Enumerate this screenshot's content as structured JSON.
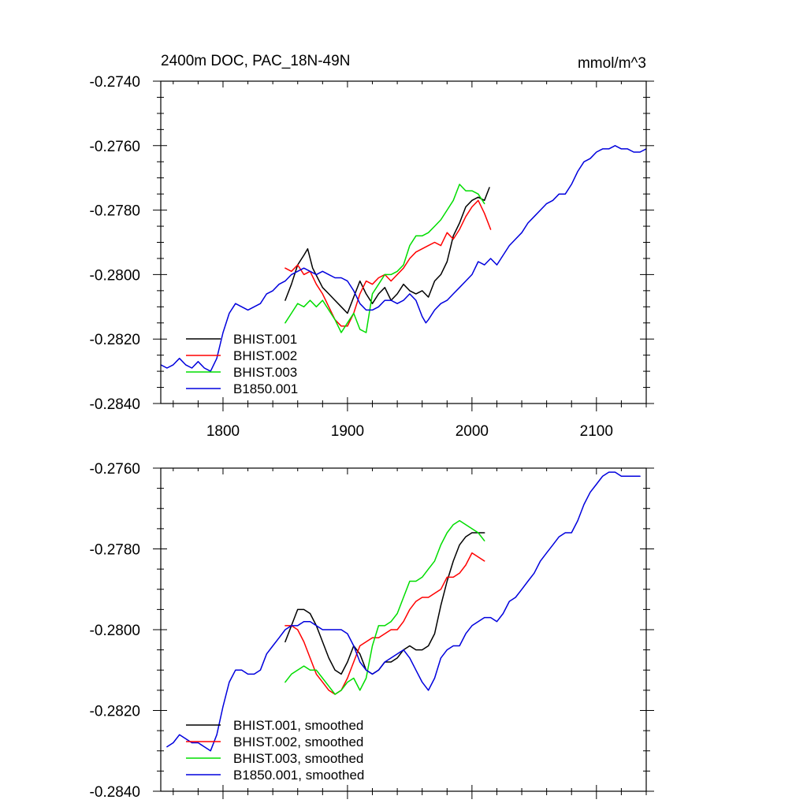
{
  "colors": {
    "BHIST.001": "#000000",
    "BHIST.002": "#ff0000",
    "BHIST.003": "#00dd00",
    "B1850.001": "#0000dd"
  },
  "chart_data": [
    {
      "type": "line",
      "title": "2400m DOC, PAC_18N-49N",
      "units_label": "mmol/m^3",
      "xlim": [
        1750,
        2140
      ],
      "ylim": [
        -0.284,
        -0.274
      ],
      "xticks": [
        1800,
        1900,
        2000,
        2100
      ],
      "xtick_labels": [
        "1800",
        "1900",
        "2000",
        "2100"
      ],
      "yticks": [
        -0.274,
        -0.276,
        -0.278,
        -0.28,
        -0.282,
        -0.284
      ],
      "ytick_labels": [
        "-0.2740",
        "-0.2760",
        "-0.2780",
        "-0.2800",
        "-0.2820",
        "-0.2840"
      ],
      "legend_position": "bottom-left",
      "series": [
        {
          "name": "BHIST.001",
          "color_key": "BHIST.001",
          "x": [
            1850,
            1855,
            1860,
            1865,
            1868,
            1872,
            1876,
            1880,
            1885,
            1890,
            1895,
            1900,
            1905,
            1910,
            1915,
            1920,
            1925,
            1930,
            1935,
            1940,
            1945,
            1950,
            1955,
            1960,
            1965,
            1970,
            1975,
            1980,
            1985,
            1990,
            1995,
            2000,
            2005,
            2010,
            2014
          ],
          "y": [
            -0.2808,
            -0.2803,
            -0.2797,
            -0.2794,
            -0.2792,
            -0.2798,
            -0.2801,
            -0.2804,
            -0.2806,
            -0.2808,
            -0.281,
            -0.2812,
            -0.2807,
            -0.2802,
            -0.2806,
            -0.2809,
            -0.2806,
            -0.2804,
            -0.2808,
            -0.2806,
            -0.2803,
            -0.2805,
            -0.2806,
            -0.2805,
            -0.2807,
            -0.2802,
            -0.28,
            -0.2796,
            -0.2788,
            -0.2784,
            -0.2779,
            -0.2777,
            -0.2776,
            -0.2777,
            -0.2773
          ]
        },
        {
          "name": "BHIST.002",
          "color_key": "BHIST.002",
          "x": [
            1850,
            1855,
            1860,
            1865,
            1870,
            1875,
            1880,
            1885,
            1890,
            1895,
            1900,
            1905,
            1910,
            1915,
            1920,
            1925,
            1930,
            1935,
            1940,
            1945,
            1950,
            1955,
            1960,
            1965,
            1970,
            1975,
            1980,
            1985,
            1990,
            1995,
            2000,
            2005,
            2010,
            2015
          ],
          "y": [
            -0.2798,
            -0.2799,
            -0.2797,
            -0.28,
            -0.2799,
            -0.2803,
            -0.2806,
            -0.281,
            -0.2814,
            -0.2816,
            -0.2816,
            -0.2812,
            -0.2806,
            -0.2802,
            -0.2803,
            -0.2801,
            -0.28,
            -0.2802,
            -0.28,
            -0.2798,
            -0.2795,
            -0.2793,
            -0.2792,
            -0.2791,
            -0.279,
            -0.2791,
            -0.2787,
            -0.2789,
            -0.2786,
            -0.2782,
            -0.2779,
            -0.2777,
            -0.2781,
            -0.2786
          ]
        },
        {
          "name": "BHIST.003",
          "color_key": "BHIST.003",
          "x": [
            1850,
            1855,
            1860,
            1865,
            1870,
            1875,
            1880,
            1885,
            1890,
            1895,
            1900,
            1905,
            1910,
            1915,
            1920,
            1925,
            1930,
            1935,
            1940,
            1945,
            1950,
            1955,
            1960,
            1965,
            1970,
            1975,
            1980,
            1985,
            1990,
            1995,
            2000,
            2005,
            2010
          ],
          "y": [
            -0.2815,
            -0.2812,
            -0.2809,
            -0.281,
            -0.2808,
            -0.281,
            -0.2808,
            -0.2811,
            -0.2814,
            -0.2818,
            -0.2815,
            -0.2812,
            -0.2817,
            -0.2818,
            -0.2806,
            -0.2803,
            -0.28,
            -0.28,
            -0.2799,
            -0.2797,
            -0.2791,
            -0.2788,
            -0.2788,
            -0.2787,
            -0.2785,
            -0.2783,
            -0.278,
            -0.2777,
            -0.2772,
            -0.2774,
            -0.2774,
            -0.2775,
            -0.2778
          ]
        },
        {
          "name": "B1850.001",
          "color_key": "B1850.001",
          "x": [
            1750,
            1755,
            1760,
            1765,
            1770,
            1775,
            1780,
            1785,
            1790,
            1795,
            1800,
            1805,
            1810,
            1815,
            1820,
            1825,
            1830,
            1835,
            1840,
            1845,
            1850,
            1855,
            1860,
            1865,
            1870,
            1875,
            1880,
            1885,
            1890,
            1895,
            1900,
            1905,
            1910,
            1915,
            1920,
            1925,
            1930,
            1935,
            1940,
            1945,
            1950,
            1955,
            1960,
            1963,
            1965,
            1970,
            1975,
            1980,
            1985,
            1990,
            1995,
            2000,
            2005,
            2010,
            2015,
            2020,
            2025,
            2030,
            2035,
            2040,
            2045,
            2050,
            2055,
            2060,
            2065,
            2070,
            2075,
            2080,
            2085,
            2090,
            2095,
            2100,
            2105,
            2110,
            2115,
            2120,
            2125,
            2130,
            2135,
            2140
          ],
          "y": [
            -0.2828,
            -0.2829,
            -0.2828,
            -0.2826,
            -0.2828,
            -0.2829,
            -0.2827,
            -0.2829,
            -0.283,
            -0.2826,
            -0.2818,
            -0.2812,
            -0.2809,
            -0.281,
            -0.2811,
            -0.281,
            -0.2809,
            -0.2806,
            -0.2805,
            -0.2803,
            -0.2802,
            -0.28,
            -0.2799,
            -0.2798,
            -0.2799,
            -0.28,
            -0.2799,
            -0.28,
            -0.2801,
            -0.2801,
            -0.2802,
            -0.2805,
            -0.2809,
            -0.2811,
            -0.2811,
            -0.281,
            -0.2808,
            -0.2808,
            -0.2809,
            -0.2808,
            -0.2806,
            -0.2808,
            -0.2813,
            -0.2815,
            -0.2814,
            -0.2811,
            -0.2809,
            -0.2808,
            -0.2806,
            -0.2804,
            -0.2802,
            -0.28,
            -0.2796,
            -0.2797,
            -0.2795,
            -0.2797,
            -0.2794,
            -0.2791,
            -0.2789,
            -0.2787,
            -0.2784,
            -0.2782,
            -0.278,
            -0.2778,
            -0.2777,
            -0.2775,
            -0.2775,
            -0.2772,
            -0.2768,
            -0.2765,
            -0.2764,
            -0.2762,
            -0.2761,
            -0.2761,
            -0.276,
            -0.2761,
            -0.2761,
            -0.2762,
            -0.2762,
            -0.2761
          ]
        }
      ]
    },
    {
      "type": "line",
      "title": "",
      "xlim": [
        1750,
        2140
      ],
      "ylim": [
        -0.284,
        -0.276
      ],
      "xticks": [
        1800,
        1900,
        2000,
        2100
      ],
      "xtick_labels": [],
      "yticks": [
        -0.276,
        -0.278,
        -0.28,
        -0.282,
        -0.284
      ],
      "ytick_labels": [
        "-0.2760",
        "-0.2780",
        "-0.2800",
        "-0.2820",
        "-0.2840"
      ],
      "legend_position": "bottom-left",
      "series": [
        {
          "name": "BHIST.001, smoothed",
          "color_key": "BHIST.001",
          "x": [
            1850,
            1855,
            1860,
            1865,
            1870,
            1875,
            1880,
            1885,
            1890,
            1895,
            1900,
            1905,
            1910,
            1915,
            1920,
            1925,
            1930,
            1935,
            1940,
            1945,
            1950,
            1955,
            1960,
            1965,
            1970,
            1975,
            1980,
            1985,
            1990,
            1995,
            2000,
            2005,
            2010
          ],
          "y": [
            -0.2803,
            -0.2799,
            -0.2795,
            -0.2795,
            -0.2796,
            -0.2799,
            -0.2803,
            -0.2807,
            -0.281,
            -0.2811,
            -0.2808,
            -0.2804,
            -0.2806,
            -0.281,
            -0.2811,
            -0.281,
            -0.2808,
            -0.2808,
            -0.2807,
            -0.2805,
            -0.2804,
            -0.2805,
            -0.2805,
            -0.2804,
            -0.2801,
            -0.2794,
            -0.2788,
            -0.2783,
            -0.2779,
            -0.2777,
            -0.2776,
            -0.2776,
            -0.2776
          ]
        },
        {
          "name": "BHIST.002, smoothed",
          "color_key": "BHIST.002",
          "x": [
            1850,
            1855,
            1860,
            1865,
            1870,
            1875,
            1880,
            1885,
            1890,
            1895,
            1900,
            1905,
            1910,
            1915,
            1920,
            1925,
            1930,
            1935,
            1940,
            1945,
            1950,
            1955,
            1960,
            1965,
            1970,
            1975,
            1980,
            1985,
            1990,
            1995,
            2000,
            2005,
            2010
          ],
          "y": [
            -0.2799,
            -0.2799,
            -0.28,
            -0.2803,
            -0.2807,
            -0.2811,
            -0.2813,
            -0.2815,
            -0.2816,
            -0.2815,
            -0.2812,
            -0.2808,
            -0.2804,
            -0.2803,
            -0.2802,
            -0.2802,
            -0.2801,
            -0.28,
            -0.28,
            -0.2798,
            -0.2795,
            -0.2793,
            -0.2792,
            -0.2792,
            -0.2791,
            -0.279,
            -0.2787,
            -0.2787,
            -0.2786,
            -0.2784,
            -0.2781,
            -0.2782,
            -0.2783
          ]
        },
        {
          "name": "BHIST.003, smoothed",
          "color_key": "BHIST.003",
          "x": [
            1850,
            1855,
            1860,
            1865,
            1870,
            1875,
            1880,
            1885,
            1890,
            1895,
            1900,
            1905,
            1910,
            1915,
            1920,
            1925,
            1930,
            1935,
            1940,
            1945,
            1950,
            1955,
            1960,
            1965,
            1970,
            1975,
            1980,
            1985,
            1990,
            1995,
            2000,
            2005,
            2010
          ],
          "y": [
            -0.2813,
            -0.2811,
            -0.281,
            -0.2809,
            -0.281,
            -0.281,
            -0.2812,
            -0.2814,
            -0.2816,
            -0.2815,
            -0.2813,
            -0.2812,
            -0.2815,
            -0.2812,
            -0.2804,
            -0.2799,
            -0.2799,
            -0.2798,
            -0.2796,
            -0.2792,
            -0.2788,
            -0.2788,
            -0.2787,
            -0.2785,
            -0.2783,
            -0.2779,
            -0.2776,
            -0.2774,
            -0.2773,
            -0.2774,
            -0.2775,
            -0.2776,
            -0.2778
          ]
        },
        {
          "name": "B1850.001, smoothed",
          "color_key": "B1850.001",
          "x": [
            1755,
            1760,
            1765,
            1770,
            1775,
            1780,
            1785,
            1790,
            1795,
            1800,
            1805,
            1810,
            1815,
            1820,
            1825,
            1830,
            1835,
            1840,
            1845,
            1850,
            1855,
            1860,
            1865,
            1870,
            1875,
            1880,
            1885,
            1890,
            1895,
            1900,
            1905,
            1910,
            1915,
            1920,
            1925,
            1930,
            1935,
            1940,
            1945,
            1950,
            1955,
            1960,
            1965,
            1970,
            1975,
            1980,
            1985,
            1990,
            1995,
            2000,
            2005,
            2010,
            2015,
            2020,
            2025,
            2030,
            2035,
            2040,
            2045,
            2050,
            2055,
            2060,
            2065,
            2070,
            2075,
            2080,
            2085,
            2090,
            2095,
            2100,
            2105,
            2110,
            2115,
            2120,
            2125,
            2130,
            2135
          ],
          "y": [
            -0.2829,
            -0.2828,
            -0.2826,
            -0.2827,
            -0.2828,
            -0.2828,
            -0.2829,
            -0.283,
            -0.2826,
            -0.2819,
            -0.2813,
            -0.281,
            -0.281,
            -0.2811,
            -0.2811,
            -0.281,
            -0.2806,
            -0.2804,
            -0.2802,
            -0.28,
            -0.2799,
            -0.2799,
            -0.2798,
            -0.2798,
            -0.2799,
            -0.28,
            -0.28,
            -0.28,
            -0.28,
            -0.2801,
            -0.2804,
            -0.2808,
            -0.281,
            -0.2811,
            -0.281,
            -0.2808,
            -0.2807,
            -0.2806,
            -0.2805,
            -0.2807,
            -0.281,
            -0.2813,
            -0.2815,
            -0.2812,
            -0.2807,
            -0.2805,
            -0.2804,
            -0.2804,
            -0.2801,
            -0.2799,
            -0.2798,
            -0.2797,
            -0.2797,
            -0.2798,
            -0.2796,
            -0.2793,
            -0.2792,
            -0.279,
            -0.2788,
            -0.2786,
            -0.2783,
            -0.2781,
            -0.2779,
            -0.2777,
            -0.2776,
            -0.2776,
            -0.2773,
            -0.2769,
            -0.2766,
            -0.2764,
            -0.2762,
            -0.2761,
            -0.2761,
            -0.2762,
            -0.2762,
            -0.2762,
            -0.2762
          ]
        }
      ]
    }
  ]
}
